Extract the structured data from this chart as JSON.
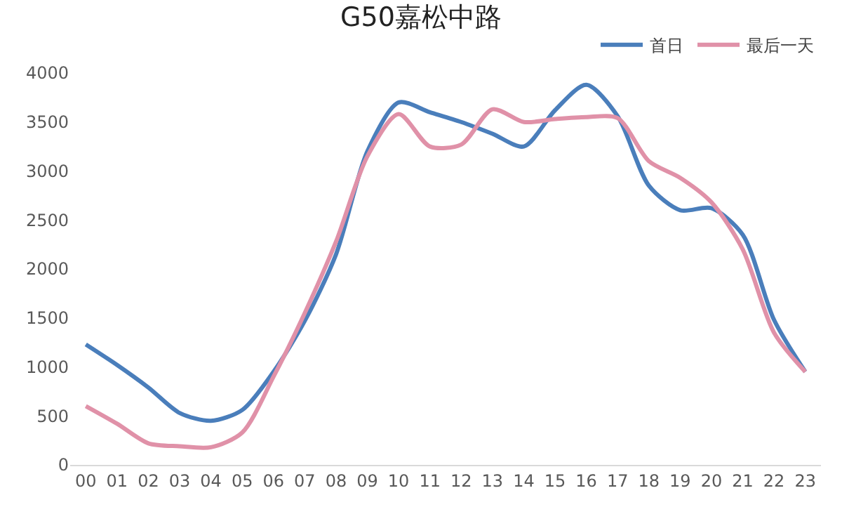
{
  "chart_data": {
    "type": "line",
    "title": "G50嘉松中路",
    "categories": [
      "00",
      "01",
      "02",
      "03",
      "04",
      "05",
      "06",
      "07",
      "08",
      "09",
      "10",
      "11",
      "12",
      "13",
      "14",
      "15",
      "16",
      "17",
      "18",
      "19",
      "20",
      "21",
      "22",
      "23"
    ],
    "series": [
      {
        "name": "首日",
        "color": "#4a7ebb",
        "values": [
          1230,
          1020,
          790,
          530,
          450,
          560,
          950,
          1470,
          2150,
          3200,
          3700,
          3600,
          3500,
          3380,
          3250,
          3620,
          3880,
          3560,
          2850,
          2600,
          2620,
          2350,
          1480,
          950
        ]
      },
      {
        "name": "最后一天",
        "color": "#e091a8",
        "values": [
          600,
          420,
          220,
          190,
          180,
          330,
          900,
          1550,
          2280,
          3150,
          3580,
          3250,
          3270,
          3630,
          3500,
          3530,
          3550,
          3540,
          3100,
          2930,
          2680,
          2200,
          1350,
          950
        ]
      }
    ],
    "ylim": [
      0,
      4000
    ],
    "yticks": [
      0,
      500,
      1000,
      1500,
      2000,
      2500,
      3000,
      3500,
      4000
    ],
    "grid": false,
    "legend": "top right",
    "marker": "none",
    "line_style": "solid"
  }
}
